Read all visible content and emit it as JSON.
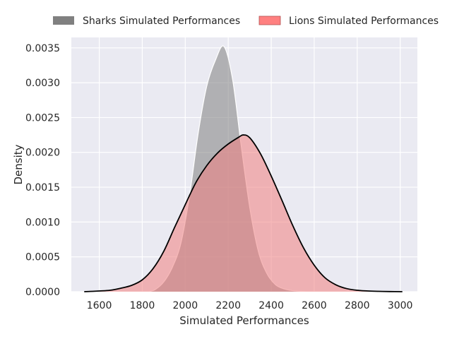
{
  "chart_data": {
    "type": "area",
    "title": "",
    "xlabel": "Simulated Performances",
    "ylabel": "Density",
    "xlim": [
      1470,
      3080
    ],
    "ylim": [
      0,
      0.00365
    ],
    "x_ticks": [
      1600,
      1800,
      2000,
      2200,
      2400,
      2600,
      2800,
      3000
    ],
    "y_ticks": [
      "0.0000",
      "0.0005",
      "0.0010",
      "0.0015",
      "0.0020",
      "0.0025",
      "0.0030",
      "0.0035"
    ],
    "grid": true,
    "legend_position": "top-center",
    "series": [
      {
        "name": "Sharks Simulated Performances",
        "color": "#808080",
        "legend_color": "#808080",
        "edge_color": "#ffffff",
        "x": [
          1830,
          1860,
          1900,
          1940,
          1980,
          2020,
          2060,
          2100,
          2140,
          2180,
          2220,
          2260,
          2300,
          2340,
          2380,
          2420,
          2460,
          2500,
          2540,
          2570
        ],
        "y": [
          0,
          3e-05,
          0.00014,
          0.00035,
          0.0007,
          0.00138,
          0.00227,
          0.00295,
          0.00332,
          0.00352,
          0.00305,
          0.0021,
          0.00121,
          0.00058,
          0.00026,
          0.0001,
          4e-05,
          1.5e-05,
          5e-06,
          0
        ]
      },
      {
        "name": "Lions Simulated Performances",
        "color": "#f08080",
        "legend_color": "#ff8080",
        "edge_color": "#000000",
        "x": [
          1530,
          1600,
          1650,
          1700,
          1750,
          1800,
          1850,
          1900,
          1950,
          2000,
          2050,
          2100,
          2150,
          2200,
          2250,
          2270,
          2300,
          2350,
          2400,
          2450,
          2500,
          2550,
          2600,
          2650,
          2700,
          2750,
          2800,
          2850,
          2900,
          2950,
          3010
        ],
        "y": [
          0,
          1e-05,
          2e-05,
          5e-05,
          9e-05,
          0.00017,
          0.00033,
          0.00058,
          0.00092,
          0.00125,
          0.00157,
          0.00181,
          0.00199,
          0.00212,
          0.00222,
          0.00225,
          0.00221,
          0.00198,
          0.00166,
          0.00131,
          0.00095,
          0.00063,
          0.00038,
          0.0002,
          0.0001,
          4.5e-05,
          2e-05,
          1e-05,
          5e-06,
          2e-06,
          0
        ]
      }
    ]
  }
}
